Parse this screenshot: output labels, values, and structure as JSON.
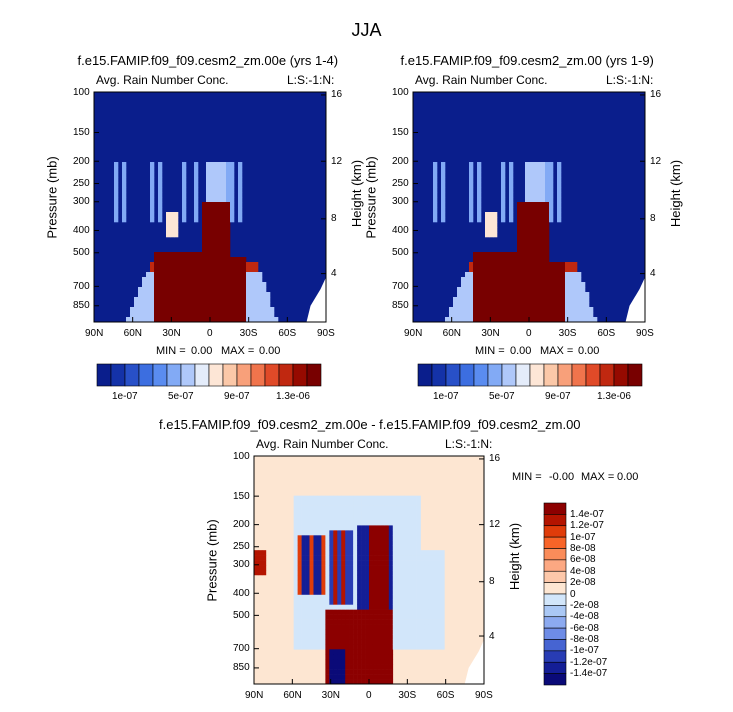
{
  "page_title": "JJA",
  "chart_data": [
    {
      "type": "heatmap",
      "title": "f.e15.FAMIP.f09_f09.cesm2_zm.00e (yrs 1-4)",
      "left_subtitle": "Avg. Rain Number Conc.",
      "right_subtitle": "L:S:-1:N:",
      "ylabel": "Pressure (mb)",
      "y2label": "Height (km)",
      "x_ticks": [
        "90N",
        "60N",
        "30N",
        "0",
        "30S",
        "60S",
        "90S"
      ],
      "y_ticks": [
        "100",
        "150",
        "200",
        "250",
        "300",
        "400",
        "500",
        "700",
        "850"
      ],
      "y2_ticks": [
        "16",
        "12",
        "8",
        "4"
      ],
      "min_label": "MIN =",
      "min_value": "0.00",
      "max_label": "MAX =",
      "max_value": "0.00",
      "colorbar_labels": [
        "1e-07",
        "5e-07",
        "9e-07",
        "1.3e-06"
      ]
    },
    {
      "type": "heatmap",
      "title": "f.e15.FAMIP.f09_f09.cesm2_zm.00 (yrs 1-9)",
      "left_subtitle": "Avg. Rain Number Conc.",
      "right_subtitle": "L:S:-1:N:",
      "ylabel": "Pressure (mb)",
      "y2label": "Height (km)",
      "x_ticks": [
        "90N",
        "60N",
        "30N",
        "0",
        "30S",
        "60S",
        "90S"
      ],
      "y_ticks": [
        "100",
        "150",
        "200",
        "250",
        "300",
        "400",
        "500",
        "700",
        "850"
      ],
      "y2_ticks": [
        "16",
        "12",
        "8",
        "4"
      ],
      "min_label": "MIN =",
      "min_value": "0.00",
      "max_label": "MAX =",
      "max_value": "0.00",
      "colorbar_labels": [
        "1e-07",
        "5e-07",
        "9e-07",
        "1.3e-06"
      ]
    },
    {
      "type": "heatmap",
      "title": "f.e15.FAMIP.f09_f09.cesm2_zm.00e - f.e15.FAMIP.f09_f09.cesm2_zm.00",
      "left_subtitle": "Avg. Rain Number Conc.",
      "right_subtitle": "L:S:-1:N:",
      "ylabel": "Pressure (mb)",
      "y2label": "Height (km)",
      "x_ticks": [
        "90N",
        "60N",
        "30N",
        "0",
        "30S",
        "60S",
        "90S"
      ],
      "y_ticks": [
        "100",
        "150",
        "200",
        "250",
        "300",
        "400",
        "500",
        "700",
        "850"
      ],
      "y2_ticks": [
        "16",
        "12",
        "8",
        "4"
      ],
      "min_label": "MIN =",
      "min_value": "-0.00",
      "max_label": "MAX =",
      "max_value": "0.00",
      "colorbar_labels": [
        "1.4e-07",
        "1.2e-07",
        "1e-07",
        "8e-08",
        "6e-08",
        "4e-08",
        "2e-08",
        "0",
        "-2e-08",
        "-4e-08",
        "-6e-08",
        "-8e-08",
        "-1e-07",
        "-1.2e-07",
        "-1.4e-07"
      ]
    }
  ],
  "colors": {
    "seq": [
      "#0a1e8c",
      "#1432a8",
      "#2850c8",
      "#3c6ee0",
      "#5a8cf0",
      "#82aaf5",
      "#afc8fa",
      "#e4ecfa",
      "#fde6d6",
      "#fbc8a8",
      "#f8a07a",
      "#f0744c",
      "#e04a28",
      "#c02810",
      "#960a00",
      "#780000"
    ],
    "diff": [
      "#8c0000",
      "#b41400",
      "#e03c0a",
      "#f86428",
      "#fa8c5a",
      "#fca882",
      "#fdc8aa",
      "#fde6d2",
      "#d2e6fa",
      "#aac8f5",
      "#8caaf0",
      "#6e8ce6",
      "#4664d2",
      "#283cb4",
      "#141e96",
      "#0a0a78"
    ]
  }
}
